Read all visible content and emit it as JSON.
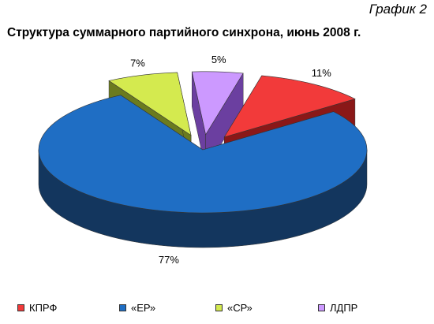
{
  "caption": "График 2",
  "chart_data": {
    "type": "pie",
    "title": "Структура суммарного партийного синхрона, июнь 2008 г.",
    "slices": [
      {
        "name": "«ЕР»",
        "value": 77,
        "label": "77%",
        "color": "#1f6ec4",
        "side_color": "#13365e",
        "exploded": false
      },
      {
        "name": "«СР»",
        "value": 7,
        "label": "7%",
        "color": "#d4ea4f",
        "side_color": "#6b7b1f",
        "exploded": true
      },
      {
        "name": "ЛДПР",
        "value": 5,
        "label": "5%",
        "color": "#cc99ff",
        "side_color": "#6b3fa0",
        "exploded": true
      },
      {
        "name": "КПРФ",
        "value": 11,
        "label": "11%",
        "color": "#f23a3a",
        "side_color": "#8a1818",
        "exploded": true
      }
    ],
    "legend": {
      "position": "bottom",
      "items": [
        {
          "name": "КПРФ",
          "color": "#f23a3a"
        },
        {
          "name": "«ЕР»",
          "color": "#1f6ec4"
        },
        {
          "name": "«СР»",
          "color": "#d4ea4f"
        },
        {
          "name": "ЛДПР",
          "color": "#cc99ff"
        }
      ]
    }
  }
}
